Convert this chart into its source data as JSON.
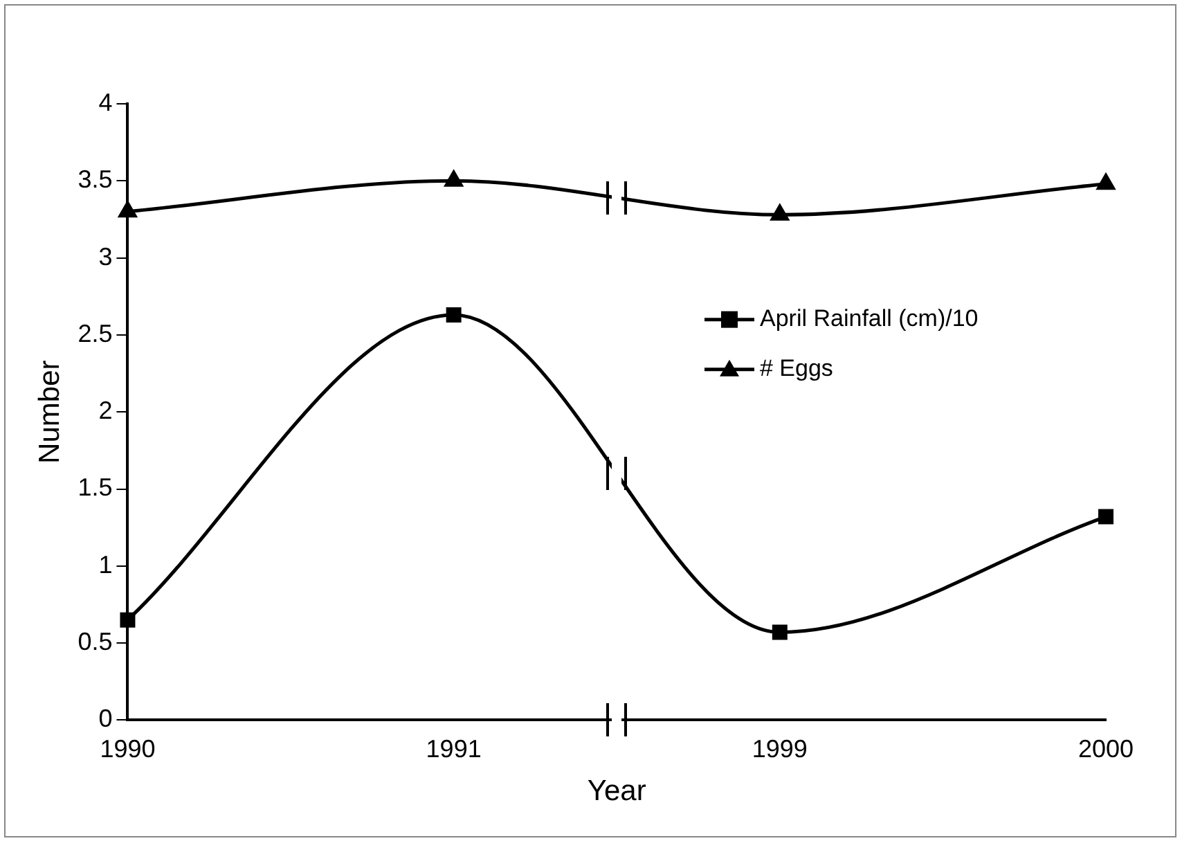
{
  "chart_data": {
    "type": "line",
    "xlabel": "Year",
    "ylabel": "Number",
    "categories": [
      "1990",
      "1991",
      "1999",
      "2000"
    ],
    "series": [
      {
        "name": "April Rainfall (cm)/10",
        "color": "#000000",
        "marker": "square",
        "values": [
          0.65,
          2.63,
          0.57,
          1.32
        ]
      },
      {
        "name": "# Eggs",
        "color": "#000000",
        "marker": "triangle",
        "values": [
          3.3,
          3.5,
          3.28,
          3.48
        ]
      }
    ],
    "ylim": [
      0,
      4
    ],
    "yticks": [
      0,
      0.5,
      1,
      1.5,
      2,
      2.5,
      3,
      3.5,
      4
    ],
    "grid": false,
    "legend": "right",
    "line_style": "solid"
  }
}
